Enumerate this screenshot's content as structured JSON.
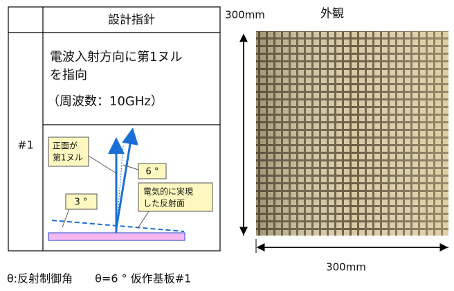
{
  "table": {
    "header": [
      "設計指針"
    ],
    "rows": [
      {
        "label": "#1",
        "principle": [
          "電波入射方向に第1ヌル",
          "を指向"
        ],
        "frequency": "（周波数：10GHz）"
      }
    ]
  },
  "diagram": {
    "callouts": [
      [
        "正面が",
        "第1ヌル"
      ],
      "6 °",
      [
        "電気的に実現",
        "した反射面"
      ],
      "3 °"
    ]
  },
  "photo": {
    "title": "外観",
    "height_label": "300mm",
    "width_label": "300mm"
  },
  "caption": "θ:反射制御角　　θ=6 ° 仮作基板#1"
}
